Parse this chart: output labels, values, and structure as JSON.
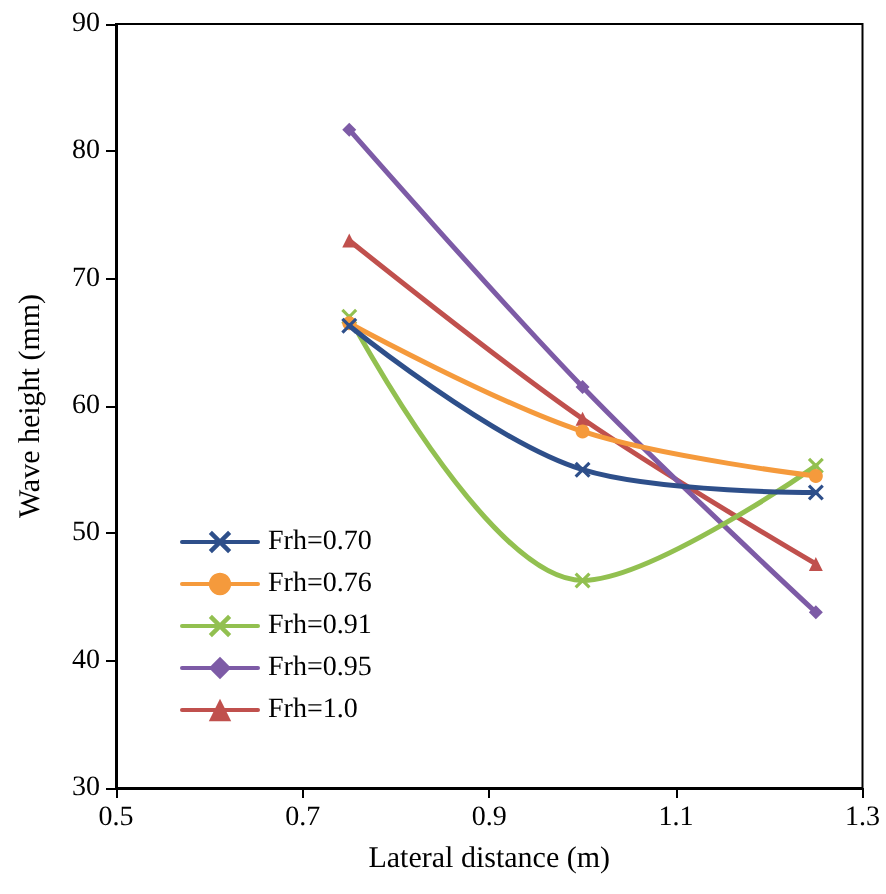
{
  "chart_data": {
    "type": "line",
    "xlabel": "Lateral distance (m)",
    "ylabel": "Wave height (mm)",
    "x": [
      0.75,
      1.0,
      1.25
    ],
    "series": [
      {
        "name": "Frh=0.70",
        "color": "#2e4f8a",
        "marker": "cross",
        "values": [
          66.3,
          55.0,
          53.2
        ]
      },
      {
        "name": "Frh=0.76",
        "color": "#f59a3c",
        "marker": "circle",
        "values": [
          66.5,
          58.0,
          54.5
        ]
      },
      {
        "name": "Frh=0.91",
        "color": "#92c050",
        "marker": "cross",
        "values": [
          67.0,
          46.3,
          55.3
        ]
      },
      {
        "name": "Frh=0.95",
        "color": "#7d5ba6",
        "marker": "diamond",
        "values": [
          81.7,
          61.5,
          43.8
        ]
      },
      {
        "name": "Frh=1.0",
        "color": "#c0504d",
        "marker": "triangle",
        "values": [
          73.0,
          59.0,
          47.6
        ]
      }
    ],
    "xlim": [
      0.5,
      1.3
    ],
    "xticks": [
      0.5,
      0.7,
      0.9,
      1.1,
      1.3
    ],
    "ylim": [
      30,
      90
    ],
    "yticks": [
      30,
      40,
      50,
      60,
      70,
      80,
      90
    ],
    "grid": false,
    "legend": "bottom left"
  }
}
